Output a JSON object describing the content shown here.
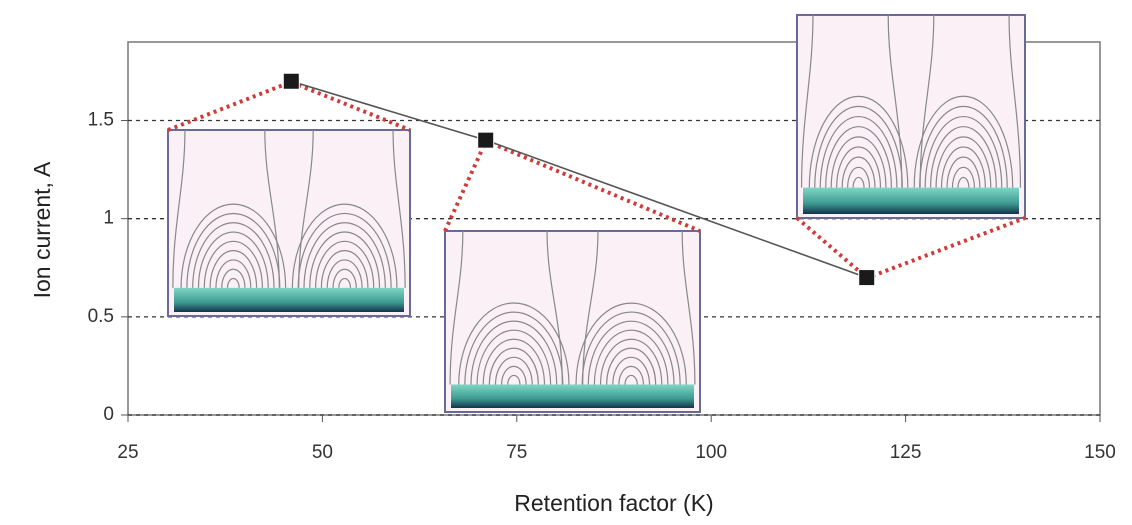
{
  "chart_data": {
    "type": "line",
    "x_label": "Retention factor (K)",
    "y_label": "Ion current, A",
    "x": [
      46,
      71,
      120
    ],
    "values": [
      1.7,
      1.4,
      0.7
    ],
    "color": "#1a1a1a",
    "xlim": [
      25,
      150
    ],
    "xticks": [
      25,
      50,
      75,
      100,
      125,
      150
    ],
    "ylim": [
      0,
      1.9
    ],
    "yticks": [
      0,
      0.5,
      1,
      1.5
    ],
    "grid": true
  }
}
